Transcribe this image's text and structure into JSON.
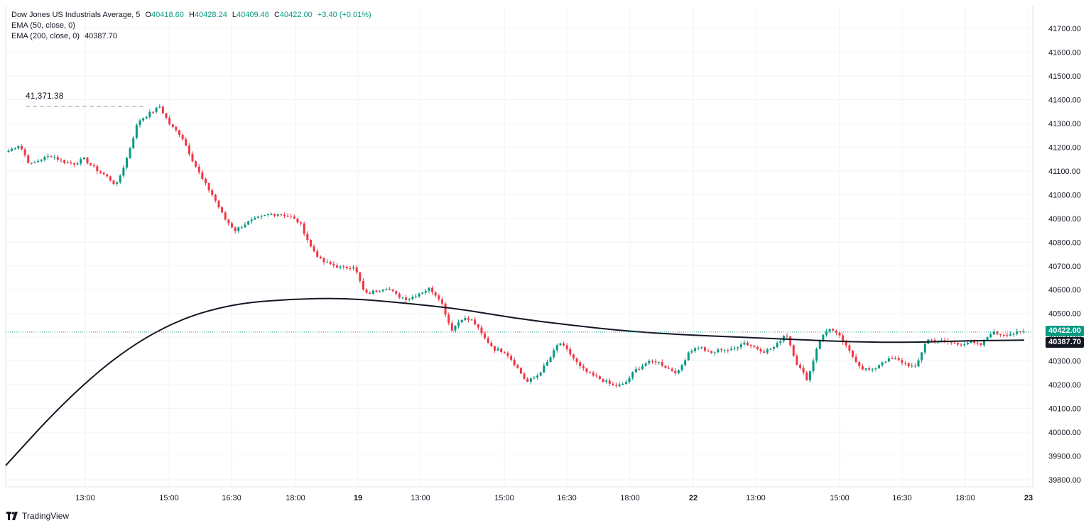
{
  "legend": {
    "symbol": "Dow Jones US Industrials Average, 5",
    "o_label": "O",
    "o_value": "40418.60",
    "h_label": "H",
    "h_value": "40428.24",
    "l_label": "L",
    "l_value": "40409.46",
    "c_label": "C",
    "c_value": "40422.00",
    "change": "+3.40 (+0.01%)",
    "ema50_label": "EMA (50, close, 0)",
    "ema200_label": "EMA (200, close, 0)",
    "ema200_value": "40387.70"
  },
  "peak_label": "41,371.38",
  "price_tags": {
    "last": "40422.00",
    "ema": "40387.70"
  },
  "brand": {
    "name": "TradingView",
    "icon": "tradingview-logo-icon"
  },
  "colors": {
    "up": "#089981",
    "down": "#f23645",
    "ema": "#131722",
    "grid": "#f0f3fa"
  },
  "chart_data": {
    "type": "candlestick",
    "y_ticks": [
      39800,
      39900,
      40000,
      40100,
      40200,
      40300,
      40400,
      40500,
      40600,
      40700,
      40800,
      40900,
      41000,
      41100,
      41200,
      41300,
      41400,
      41500,
      41600,
      41700
    ],
    "y_tick_labels": [
      "39800.00",
      "39900.00",
      "40000.00",
      "40100.00",
      "40200.00",
      "40300.00",
      "40400.00",
      "40500.00",
      "40600.00",
      "40700.00",
      "40800.00",
      "40900.00",
      "41000.00",
      "41100.00",
      "41200.00",
      "41300.00",
      "41400.00",
      "41500.00",
      "41600.00",
      "41700.00"
    ],
    "x_ticks": [
      {
        "label": "13:00",
        "bold": false
      },
      {
        "label": "15:00",
        "bold": false
      },
      {
        "label": "16:30",
        "bold": false
      },
      {
        "label": "18:00",
        "bold": false
      },
      {
        "label": "19",
        "bold": true
      },
      {
        "label": "13:00",
        "bold": false
      },
      {
        "label": "15:00",
        "bold": false
      },
      {
        "label": "16:30",
        "bold": false
      },
      {
        "label": "18:00",
        "bold": false
      },
      {
        "label": "22",
        "bold": true
      },
      {
        "label": "13:00",
        "bold": false
      },
      {
        "label": "15:00",
        "bold": false
      },
      {
        "label": "16:30",
        "bold": false
      },
      {
        "label": "18:00",
        "bold": false
      },
      {
        "label": "23",
        "bold": true
      }
    ],
    "close_path": [
      41185,
      41210,
      41125,
      41150,
      41165,
      41140,
      41130,
      41150,
      41110,
      41080,
      41040,
      41160,
      41310,
      41340,
      41371,
      41290,
      41250,
      41150,
      41060,
      40990,
      40900,
      40850,
      40880,
      40900,
      40915,
      40920,
      40910,
      40880,
      40780,
      40720,
      40705,
      40690,
      40700,
      40580,
      40595,
      40610,
      40575,
      40560,
      40585,
      40605,
      40560,
      40430,
      40480,
      40470,
      40400,
      40350,
      40340,
      40280,
      40210,
      40240,
      40300,
      40380,
      40330,
      40270,
      40240,
      40220,
      40195,
      40200,
      40260,
      40290,
      40300,
      40270,
      40250,
      40340,
      40360,
      40330,
      40350,
      40345,
      40380,
      40360,
      40340,
      40360,
      40420,
      40290,
      40220,
      40380,
      40440,
      40400,
      40330,
      40270,
      40260,
      40300,
      40310,
      40290,
      40270,
      40390,
      40385,
      40380,
      40370,
      40380,
      40365,
      40420,
      40412,
      40415,
      40422
    ],
    "ema200": [
      39860,
      40120,
      40330,
      40470,
      40540,
      40560,
      40565,
      40545,
      40520,
      40480,
      40450,
      40425,
      40410,
      40400,
      40390,
      40380,
      40378,
      40385,
      40388
    ],
    "ema50_value_shown": false,
    "peak_value": 41371.38
  }
}
